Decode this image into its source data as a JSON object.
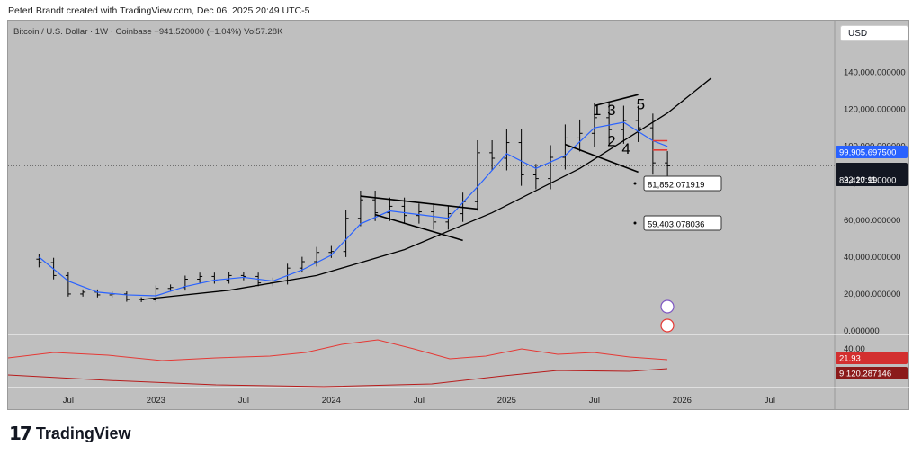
{
  "header": {
    "attribution": "PeterLBrandt created with TradingView.com, Dec 06, 2025 20:49 UTC-5",
    "symbol_line": "Bitcoin / U.S. Dollar · 1W · Coinbase  −941.520000 (−1.04%)  Vol57.28K",
    "currency_button": "USD"
  },
  "footer": {
    "brand": "TradingView"
  },
  "colors": {
    "background": "#bfbfbf",
    "ma_line": "#2962ff",
    "trend_curve": "#000000",
    "red_lines": "#e53935",
    "rsi_line": "#e53935",
    "price_label_blue": "#2962ff",
    "price_label_red": "#c62828"
  },
  "chart_data": {
    "type": "line",
    "title": "Bitcoin / U.S. Dollar · 1W · Coinbase",
    "x_tick_labels": [
      "Jul",
      "2023",
      "Jul",
      "2024",
      "Jul",
      "2025",
      "Jul",
      "2026",
      "Jul"
    ],
    "y_tick_labels": [
      "140,000.000000",
      "120,000.000000",
      "100,000.000000",
      "80,000.000000",
      "60,000.000000",
      "40,000.000000",
      "20,000.000000",
      "0.000000"
    ],
    "ylim": [
      0,
      150000
    ],
    "price_series": [
      {
        "t": "2022-05",
        "v": 37000
      },
      {
        "t": "2022-06",
        "v": 30000
      },
      {
        "t": "2022-07",
        "v": 20000
      },
      {
        "t": "2022-08",
        "v": 21000
      },
      {
        "t": "2022-09",
        "v": 19500
      },
      {
        "t": "2022-10",
        "v": 20000
      },
      {
        "t": "2022-11",
        "v": 17000
      },
      {
        "t": "2022-12",
        "v": 16800
      },
      {
        "t": "2023-01",
        "v": 23000
      },
      {
        "t": "2023-02",
        "v": 23500
      },
      {
        "t": "2023-03",
        "v": 28000
      },
      {
        "t": "2023-04",
        "v": 29500
      },
      {
        "t": "2023-05",
        "v": 27500
      },
      {
        "t": "2023-06",
        "v": 30000
      },
      {
        "t": "2023-07",
        "v": 29500
      },
      {
        "t": "2023-08",
        "v": 26000
      },
      {
        "t": "2023-09",
        "v": 27000
      },
      {
        "t": "2023-10",
        "v": 34000
      },
      {
        "t": "2023-11",
        "v": 37500
      },
      {
        "t": "2023-12",
        "v": 42500
      },
      {
        "t": "2024-01",
        "v": 43000
      },
      {
        "t": "2024-02",
        "v": 61000
      },
      {
        "t": "2024-03",
        "v": 71000
      },
      {
        "t": "2024-04",
        "v": 64000
      },
      {
        "t": "2024-05",
        "v": 67500
      },
      {
        "t": "2024-06",
        "v": 62500
      },
      {
        "t": "2024-07",
        "v": 64500
      },
      {
        "t": "2024-08",
        "v": 59000
      },
      {
        "t": "2024-09",
        "v": 63500
      },
      {
        "t": "2024-10",
        "v": 70000
      },
      {
        "t": "2024-11",
        "v": 96500
      },
      {
        "t": "2024-12",
        "v": 93500
      },
      {
        "t": "2025-01",
        "v": 102000
      },
      {
        "t": "2025-02",
        "v": 84500
      },
      {
        "t": "2025-03",
        "v": 82500
      },
      {
        "t": "2025-04",
        "v": 94000
      },
      {
        "t": "2025-05",
        "v": 104500
      },
      {
        "t": "2025-06",
        "v": 107000
      },
      {
        "t": "2025-07",
        "v": 115500
      },
      {
        "t": "2025-08",
        "v": 109000
      },
      {
        "t": "2025-09",
        "v": 114000
      },
      {
        "t": "2025-10",
        "v": 110000
      },
      {
        "t": "2025-11",
        "v": 91000
      },
      {
        "t": "2025-12",
        "v": 89428
      }
    ],
    "ma_series": [
      {
        "t": "2022-05",
        "v": 40000
      },
      {
        "t": "2022-07",
        "v": 27000
      },
      {
        "t": "2022-09",
        "v": 21000
      },
      {
        "t": "2022-11",
        "v": 19500
      },
      {
        "t": "2023-01",
        "v": 19000
      },
      {
        "t": "2023-03",
        "v": 24000
      },
      {
        "t": "2023-05",
        "v": 27500
      },
      {
        "t": "2023-07",
        "v": 29000
      },
      {
        "t": "2023-09",
        "v": 27000
      },
      {
        "t": "2023-11",
        "v": 33000
      },
      {
        "t": "2024-01",
        "v": 41000
      },
      {
        "t": "2024-03",
        "v": 58000
      },
      {
        "t": "2024-05",
        "v": 65000
      },
      {
        "t": "2024-07",
        "v": 63000
      },
      {
        "t": "2024-09",
        "v": 61000
      },
      {
        "t": "2024-11",
        "v": 78000
      },
      {
        "t": "2025-01",
        "v": 96000
      },
      {
        "t": "2025-03",
        "v": 88000
      },
      {
        "t": "2025-05",
        "v": 95000
      },
      {
        "t": "2025-07",
        "v": 110000
      },
      {
        "t": "2025-09",
        "v": 113000
      },
      {
        "t": "2025-11",
        "v": 103000
      },
      {
        "t": "2025-12",
        "v": 99906
      }
    ],
    "trend_curve": [
      {
        "t": "2022-12",
        "v": 17000
      },
      {
        "t": "2023-06",
        "v": 22000
      },
      {
        "t": "2023-12",
        "v": 30000
      },
      {
        "t": "2024-06",
        "v": 44000
      },
      {
        "t": "2024-12",
        "v": 64000
      },
      {
        "t": "2025-06",
        "v": 88000
      },
      {
        "t": "2025-12",
        "v": 118000
      },
      {
        "t": "2026-03",
        "v": 137000
      }
    ],
    "pattern_labels": [
      "1",
      "3",
      "5",
      "2",
      "4"
    ],
    "price_labels": {
      "ma_value": "99,905.697500",
      "last_price": "89,427.990000",
      "countdown": "22:10:11",
      "callout_1": "81,852.071919",
      "callout_2": "59,403.078036"
    },
    "rsi_panel": {
      "tick_label": "40.00",
      "value_label": "21.93",
      "vol_label": "9,120.287146"
    }
  }
}
